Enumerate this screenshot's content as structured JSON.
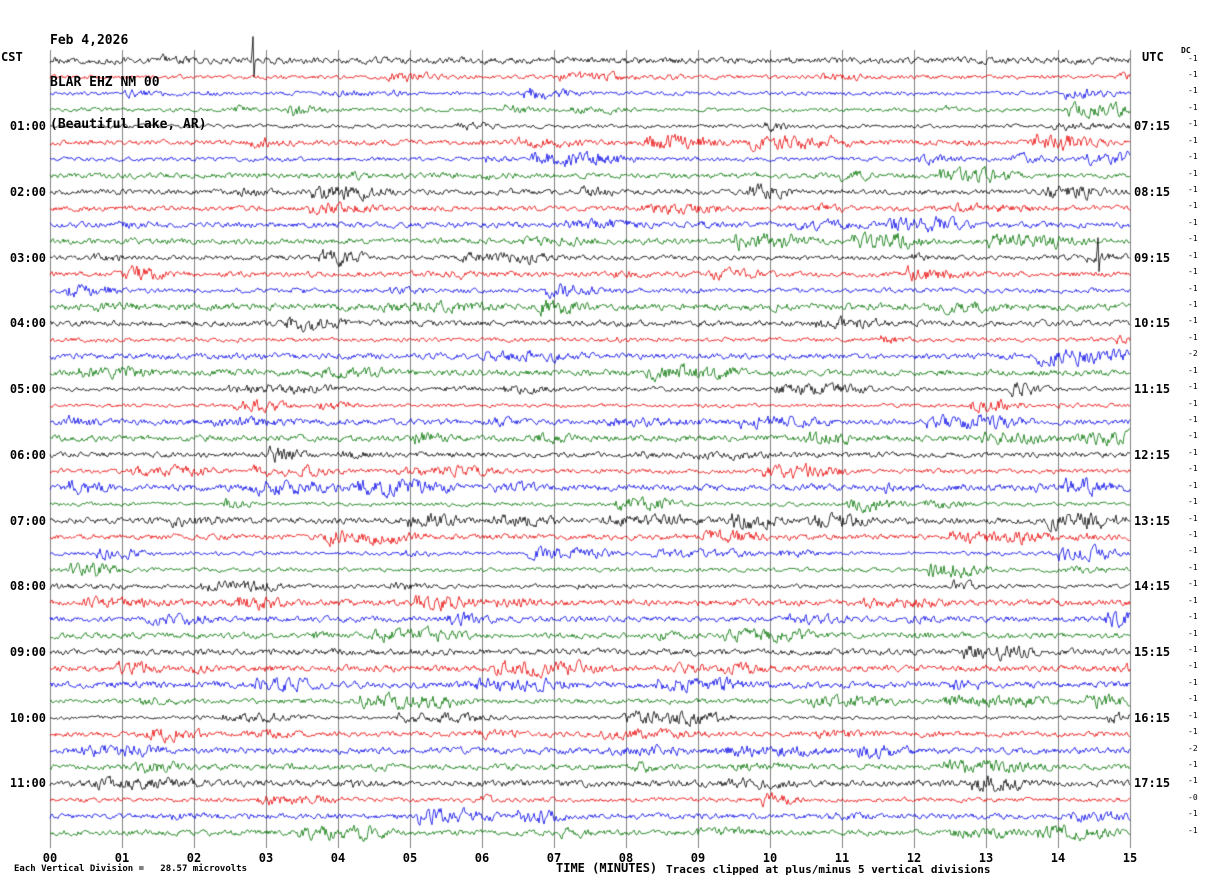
{
  "header": {
    "date": "Feb 4,2026",
    "station": "BLAR EHZ NM 00",
    "location": "(Beautiful Lake, AR)",
    "left_timezone": "CST",
    "right_timezone": "UTC",
    "dc_label": "DC"
  },
  "footer": {
    "scale_note": "Each Vertical Division =   28.57 microvolts",
    "x_axis_title": "TIME (MINUTES)",
    "clip_note": "Traces clipped at plus/minus 5 vertical divisions"
  },
  "chart_data": {
    "type": "line",
    "subtype": "helicorder_seismogram",
    "title": "BLAR EHZ NM 00 (Beautiful Lake, AR) Feb 4,2026",
    "xlabel": "TIME (MINUTES)",
    "x_range_minutes": [
      0,
      15
    ],
    "x_tick_labels": [
      "00",
      "01",
      "02",
      "03",
      "04",
      "05",
      "06",
      "07",
      "08",
      "09",
      "10",
      "11",
      "12",
      "13",
      "14",
      "15"
    ],
    "num_traces": 48,
    "traces_per_hour": 4,
    "minutes_per_trace": 15,
    "start_time_left": "00:00 CST",
    "grid": true,
    "trace_color_cycle": [
      "#000000",
      "#e80000",
      "#0000e8",
      "#007300"
    ],
    "left_hour_labels": [
      {
        "row": 4,
        "label": "01:00"
      },
      {
        "row": 8,
        "label": "02:00"
      },
      {
        "row": 12,
        "label": "03:00"
      },
      {
        "row": 16,
        "label": "04:00"
      },
      {
        "row": 20,
        "label": "05:00"
      },
      {
        "row": 24,
        "label": "06:00"
      },
      {
        "row": 28,
        "label": "07:00"
      },
      {
        "row": 32,
        "label": "08:00"
      },
      {
        "row": 36,
        "label": "09:00"
      },
      {
        "row": 40,
        "label": "10:00"
      },
      {
        "row": 44,
        "label": "11:00"
      }
    ],
    "right_hour_labels": [
      {
        "row": 4,
        "label": "07:15"
      },
      {
        "row": 8,
        "label": "08:15"
      },
      {
        "row": 12,
        "label": "09:15"
      },
      {
        "row": 16,
        "label": "10:15"
      },
      {
        "row": 20,
        "label": "11:15"
      },
      {
        "row": 24,
        "label": "12:15"
      },
      {
        "row": 28,
        "label": "13:15"
      },
      {
        "row": 32,
        "label": "14:15"
      },
      {
        "row": 36,
        "label": "15:15"
      },
      {
        "row": 40,
        "label": "16:15"
      },
      {
        "row": 44,
        "label": "17:15"
      }
    ],
    "row_gain_labels": [
      "-1",
      "-1",
      "-1",
      "-1",
      "-1",
      "-1",
      "-1",
      "-1",
      "-1",
      "-1",
      "-1",
      "-1",
      "-1",
      "-1",
      "-1",
      "-1",
      "-1",
      "-1",
      "-2",
      "-1",
      "-1",
      "-1",
      "-1",
      "-1",
      "-1",
      "-1",
      "-1",
      "-1",
      "-1",
      "-1",
      "-1",
      "-1",
      "-1",
      "-1",
      "-1",
      "-1",
      "-1",
      "-1",
      "-1",
      "-1",
      "-1",
      "-1",
      "-2",
      "-1",
      "-1",
      "-0",
      "-1",
      "-1"
    ],
    "events": [
      {
        "row": 0,
        "minute": 2.82,
        "amp": 24,
        "note": "clipped spike on first trace"
      },
      {
        "row": 12,
        "minute": 14.55,
        "amp": 20,
        "note": "large spike near right edge of 03:00 trace"
      }
    ],
    "noise": "continuous background microseism noise on all 48 traces, clipped at plus/minus 5 vertical divisions"
  }
}
